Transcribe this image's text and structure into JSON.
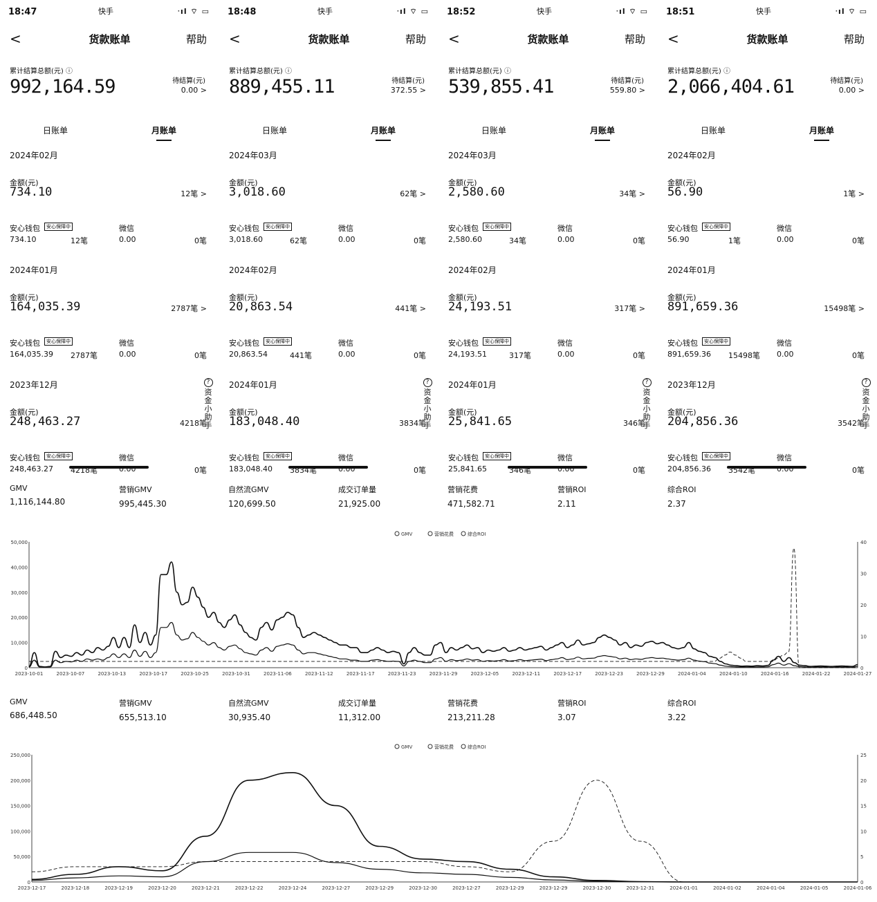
{
  "phones": [
    {
      "time": "18:47",
      "carrier": "快手",
      "status_icons": "ᐧıl ⌔ ▭",
      "title": "货款账单",
      "back": "<",
      "help": "帮助",
      "total_label": "累计结算总额(元) ⓘ",
      "total_value": "992,164.59",
      "pending_label": "待结算(元)",
      "pending_value": "0.00 >",
      "tab_day": "日账单",
      "tab_month": "月账单",
      "sections": [
        {
          "month": "2024年02月",
          "amount_label": "金额(元)",
          "amount": "734.10",
          "count": "12笔 >",
          "wallet_label": "安心钱包",
          "badge": "安心保障中",
          "wechat_label": "微信",
          "wallet_amount": "734.10",
          "wallet_count": "12笔",
          "wechat_amount": "0.00",
          "wechat_count": "0笔"
        },
        {
          "month": "2024年01月",
          "amount_label": "金额(元)",
          "amount": "164,035.39",
          "count": "2787笔 >",
          "wallet_label": "安心钱包",
          "badge": "安心保障中",
          "wechat_label": "微信",
          "wallet_amount": "164,035.39",
          "wallet_count": "2787笔",
          "wechat_amount": "0.00",
          "wechat_count": "0笔"
        },
        {
          "month": "2023年12月",
          "amount_label": "金额(元)",
          "amount": "248,463.27",
          "count": "4218笔",
          "wallet_label": "安心钱包",
          "badge": "安心保障中",
          "wechat_label": "微信",
          "wallet_amount": "248,463.27",
          "wallet_count": "4218笔",
          "wechat_amount": "0.00",
          "wechat_count": "0笔"
        }
      ],
      "helper": "资金小助手"
    },
    {
      "time": "18:48",
      "carrier": "快手",
      "status_icons": "ᐧıl ⌔ ▭",
      "title": "货款账单",
      "back": "<",
      "help": "帮助",
      "total_label": "累计结算总额(元) ⓘ",
      "total_value": "889,455.11",
      "pending_label": "待结算(元)",
      "pending_value": "372.55 >",
      "tab_day": "日账单",
      "tab_month": "月账单",
      "sections": [
        {
          "month": "2024年03月",
          "amount_label": "金额(元)",
          "amount": "3,018.60",
          "count": "62笔 >",
          "wallet_label": "安心钱包",
          "badge": "安心保障中",
          "wechat_label": "微信",
          "wallet_amount": "3,018.60",
          "wallet_count": "62笔",
          "wechat_amount": "0.00",
          "wechat_count": "0笔"
        },
        {
          "month": "2024年02月",
          "amount_label": "金额(元)",
          "amount": "20,863.54",
          "count": "441笔 >",
          "wallet_label": "安心钱包",
          "badge": "安心保障中",
          "wechat_label": "微信",
          "wallet_amount": "20,863.54",
          "wallet_count": "441笔",
          "wechat_amount": "0.00",
          "wechat_count": "0笔"
        },
        {
          "month": "2024年01月",
          "amount_label": "金额(元)",
          "amount": "183,048.40",
          "count": "3834笔",
          "wallet_label": "安心钱包",
          "badge": "安心保障中",
          "wechat_label": "微信",
          "wallet_amount": "183,048.40",
          "wallet_count": "3834笔",
          "wechat_amount": "0.00",
          "wechat_count": "0笔"
        }
      ],
      "helper": "资金小助手"
    },
    {
      "time": "18:52",
      "carrier": "快手",
      "status_icons": "ᐧıl ⌔ ▭",
      "title": "货款账单",
      "back": "<",
      "help": "帮助",
      "total_label": "累计结算总额(元) ⓘ",
      "total_value": "539,855.41",
      "pending_label": "待结算(元)",
      "pending_value": "559.80 >",
      "tab_day": "日账单",
      "tab_month": "月账单",
      "sections": [
        {
          "month": "2024年03月",
          "amount_label": "金额(元)",
          "amount": "2,580.60",
          "count": "34笔 >",
          "wallet_label": "安心钱包",
          "badge": "安心保障中",
          "wechat_label": "微信",
          "wallet_amount": "2,580.60",
          "wallet_count": "34笔",
          "wechat_amount": "0.00",
          "wechat_count": "0笔"
        },
        {
          "month": "2024年02月",
          "amount_label": "金额(元)",
          "amount": "24,193.51",
          "count": "317笔 >",
          "wallet_label": "安心钱包",
          "badge": "安心保障中",
          "wechat_label": "微信",
          "wallet_amount": "24,193.51",
          "wallet_count": "317笔",
          "wechat_amount": "0.00",
          "wechat_count": "0笔"
        },
        {
          "month": "2024年01月",
          "amount_label": "金额(元)",
          "amount": "25,841.65",
          "count": "346笔",
          "wallet_label": "安心钱包",
          "badge": "安心保障中",
          "wechat_label": "微信",
          "wallet_amount": "25,841.65",
          "wallet_count": "346笔",
          "wechat_amount": "0.00",
          "wechat_count": "0笔"
        }
      ],
      "helper": "资金小助手"
    },
    {
      "time": "18:51",
      "carrier": "快手",
      "status_icons": "ᐧıl ⌔ ▭",
      "title": "货款账单",
      "back": "<",
      "help": "帮助",
      "total_label": "累计结算总额(元) ⓘ",
      "total_value": "2,066,404.61",
      "pending_label": "待结算(元)",
      "pending_value": "0.00 >",
      "tab_day": "日账单",
      "tab_month": "月账单",
      "sections": [
        {
          "month": "2024年02月",
          "amount_label": "金额(元)",
          "amount": "56.90",
          "count": "1笔 >",
          "wallet_label": "安心钱包",
          "badge": "安心保障中",
          "wechat_label": "微信",
          "wallet_amount": "56.90",
          "wallet_count": "1笔",
          "wechat_amount": "0.00",
          "wechat_count": "0笔"
        },
        {
          "month": "2024年01月",
          "amount_label": "金额(元)",
          "amount": "891,659.36",
          "count": "15498笔 >",
          "wallet_label": "安心钱包",
          "badge": "安心保障中",
          "wechat_label": "微信",
          "wallet_amount": "891,659.36",
          "wallet_count": "15498笔",
          "wechat_amount": "0.00",
          "wechat_count": "0笔"
        },
        {
          "month": "2023年12月",
          "amount_label": "金额(元)",
          "amount": "204,856.36",
          "count": "3542笔",
          "wallet_label": "安心钱包",
          "badge": "安心保障中",
          "wechat_label": "微信",
          "wallet_amount": "204,856.36",
          "wallet_count": "3542笔",
          "wechat_amount": "0.00",
          "wechat_count": "0笔"
        }
      ],
      "helper": "资金小助手"
    }
  ],
  "stats_1": [
    {
      "label": "GMV",
      "value": "1,116,144.80"
    },
    {
      "label": "营销GMV",
      "value": "995,445.30"
    },
    {
      "label": "自然流GMV",
      "value": "120,699.50"
    },
    {
      "label": "成交订单量",
      "value": "21,925.00"
    },
    {
      "label": "营销花费",
      "value": "471,582.71"
    },
    {
      "label": "营销ROI",
      "value": "2.11"
    },
    {
      "label": "综合ROI",
      "value": "2.37"
    }
  ],
  "stats_2": [
    {
      "label": "GMV",
      "value": "686,448.50"
    },
    {
      "label": "营销GMV",
      "value": "655,513.10"
    },
    {
      "label": "自然流GMV",
      "value": "30,935.40"
    },
    {
      "label": "成交订单量",
      "value": "11,312.00"
    },
    {
      "label": "营销花费",
      "value": "213,211.28"
    },
    {
      "label": "营销ROI",
      "value": "3.07"
    },
    {
      "label": "综合ROI",
      "value": "3.22"
    }
  ],
  "chart_data": [
    {
      "type": "line",
      "legend": [
        "GMV",
        "营销花费",
        "综合ROI"
      ],
      "legend_position": "top-center",
      "y_left_ticks": [
        "50,000",
        "40,000",
        "30,000",
        "20,000",
        "10,000",
        "0"
      ],
      "y_right_ticks": [
        "40",
        "30",
        "20",
        "10",
        "0"
      ],
      "x_ticks": [
        "2023-10-01",
        "2023-10-07",
        "2023-10-13",
        "2023-10-17",
        "2023-10-25",
        "2023-10-31",
        "2023-11-06",
        "2023-11-12",
        "2023-11-17",
        "2023-11-23",
        "2023-11-29",
        "2023-12-05",
        "2023-12-11",
        "2023-12-17",
        "2023-12-23",
        "2023-12-29",
        "2024-01-04",
        "2024-01-10",
        "2024-01-16",
        "2024-01-22",
        "2024-01-27"
      ],
      "ylim_left": [
        0,
        50000
      ],
      "ylim_right": [
        0,
        40
      ],
      "series": [
        {
          "name": "GMV",
          "axis": "left",
          "values": [
            500,
            6000,
            500,
            300,
            500,
            6500,
            4000,
            5000,
            4500,
            6000,
            5000,
            7000,
            6000,
            8000,
            7000,
            8500,
            12000,
            8000,
            12000,
            8000,
            17000,
            10000,
            14000,
            9000,
            13000,
            37000,
            37000,
            42000,
            30000,
            25000,
            26000,
            32000,
            28000,
            24000,
            20000,
            22000,
            18000,
            16000,
            19000,
            21000,
            17000,
            14000,
            12000,
            11000,
            16000,
            18000,
            15000,
            19000,
            20000,
            22000,
            21000,
            16000,
            12000,
            13000,
            14000,
            13000,
            12000,
            11000,
            10000,
            9000,
            9000,
            8000,
            8000,
            6000,
            6000,
            7000,
            8000,
            7000,
            6000,
            6500,
            6000,
            1500,
            6000,
            8000,
            6000,
            5000,
            5000,
            9000,
            10000,
            6000,
            8000,
            7000,
            8000,
            9000,
            7500,
            8000,
            6000,
            7000,
            6500,
            7000,
            8000,
            6500,
            7000,
            8000,
            7000,
            7500,
            8000,
            8500,
            7000,
            8000,
            9000,
            10000,
            8000,
            9000,
            11000,
            9000,
            9500,
            10000,
            12000,
            13000,
            12000,
            11000,
            9000,
            10000,
            8000,
            9000,
            8500,
            10000,
            10500,
            9500,
            10000,
            9000,
            8000,
            7500,
            8000,
            10000,
            7500,
            6500,
            6000,
            4500,
            4000,
            2500,
            1500,
            1000,
            800,
            600,
            700,
            600,
            800,
            700,
            900,
            3000,
            4500,
            2500,
            4000,
            2000,
            1000,
            800,
            500,
            600,
            700,
            600,
            500,
            600,
            700,
            600,
            500,
            1200
          ]
        },
        {
          "name": "营销花费",
          "axis": "left",
          "values": [
            300,
            3000,
            300,
            200,
            300,
            3000,
            2000,
            2500,
            2300,
            3000,
            2500,
            3500,
            3000,
            3500,
            3000,
            4000,
            5500,
            4000,
            5500,
            4000,
            7000,
            4500,
            6500,
            4000,
            6000,
            16000,
            16000,
            18000,
            13000,
            11000,
            11500,
            14000,
            12000,
            10500,
            9000,
            10000,
            8000,
            7000,
            8500,
            9000,
            7500,
            6000,
            5500,
            5000,
            7000,
            8000,
            6500,
            8500,
            9000,
            9500,
            9000,
            7000,
            5500,
            6000,
            6000,
            5500,
            5000,
            4500,
            4000,
            3500,
            3500,
            3000,
            3000,
            2500,
            2500,
            3000,
            3200,
            2800,
            2500,
            2600,
            2500,
            700,
            2500,
            3000,
            2500,
            2000,
            2000,
            3500,
            4000,
            2500,
            3200,
            2800,
            3000,
            3500,
            3000,
            3200,
            2500,
            2800,
            2600,
            2800,
            3200,
            2600,
            2800,
            3200,
            2800,
            3000,
            3200,
            3400,
            2800,
            3200,
            3500,
            4000,
            3200,
            3500,
            4200,
            3500,
            3700,
            3800,
            4500,
            4800,
            4500,
            4200,
            3500,
            3800,
            3200,
            3500,
            3300,
            3800,
            4000,
            3700,
            3800,
            3500,
            3200,
            3000,
            3200,
            3800,
            3000,
            2600,
            2400,
            1800,
            1600,
            1000,
            600,
            400,
            300,
            250,
            300,
            250,
            300,
            300,
            350,
            1200,
            1800,
            1000,
            1600,
            800,
            400,
            300,
            200,
            250,
            300,
            250,
            200,
            250,
            300,
            250,
            200,
            500
          ]
        },
        {
          "name": "综合ROI",
          "axis": "right",
          "dashed": true,
          "values": [
            2,
            2,
            2,
            2,
            2,
            2,
            2,
            2,
            2,
            2,
            2,
            2,
            2,
            2,
            2,
            2,
            2,
            2,
            2,
            2,
            2,
            2,
            2,
            2,
            2,
            2,
            2,
            2,
            2,
            2,
            2,
            2,
            2,
            2,
            2,
            2,
            2,
            2,
            2,
            2,
            2,
            2,
            2,
            2,
            2,
            2,
            2,
            2,
            2,
            2,
            2,
            2,
            2,
            2,
            2,
            2,
            2,
            2,
            2,
            2,
            2,
            2,
            2,
            2,
            2,
            2,
            2,
            2,
            2,
            2,
            2,
            2,
            2,
            2,
            2,
            2,
            2,
            2,
            2,
            2,
            2,
            2,
            2,
            2,
            2,
            2,
            2,
            2,
            2,
            2,
            2,
            2,
            2,
            2,
            2,
            2,
            2,
            2,
            2,
            2,
            2,
            2,
            2,
            2,
            2,
            2,
            2,
            2,
            2,
            2,
            2,
            2,
            2,
            2,
            2,
            2,
            2,
            2,
            2,
            2,
            2,
            2,
            2,
            2,
            2,
            2,
            2,
            2,
            2,
            2,
            3,
            4,
            5,
            4,
            3,
            2,
            2,
            2,
            2,
            2,
            2,
            3,
            4,
            5,
            38,
            0,
            0,
            0,
            0,
            0,
            0,
            0,
            0,
            0,
            0,
            0,
            0
          ]
        }
      ]
    },
    {
      "type": "line",
      "legend": [
        "GMV",
        "营销花费",
        "综合ROI"
      ],
      "legend_position": "top-center",
      "y_left_ticks": [
        "250,000",
        "200,000",
        "150,000",
        "100,000",
        "50,000",
        "0"
      ],
      "y_right_ticks": [
        "25",
        "20",
        "15",
        "10",
        "5",
        "0"
      ],
      "x_ticks": [
        "2023-12-17",
        "2023-12-18",
        "2023-12-19",
        "2023-12-20",
        "2023-12-21",
        "2023-12-22",
        "2023-12-24",
        "2023-12-27",
        "2023-12-29",
        "2023-12-30",
        "2023-12-27",
        "2023-12-29",
        "2023-12-29",
        "2023-12-30",
        "2023-12-31",
        "2024-01-01",
        "2024-01-02",
        "2024-01-04",
        "2024-01-05",
        "2024-01-06"
      ],
      "ylim_left": [
        0,
        250000
      ],
      "ylim_right": [
        0,
        25
      ],
      "series": [
        {
          "name": "GMV",
          "axis": "left",
          "values": [
            5000,
            15000,
            30000,
            22000,
            90000,
            200000,
            215000,
            150000,
            70000,
            45000,
            40000,
            25000,
            10000,
            3000,
            500,
            0,
            0,
            0,
            0,
            0
          ]
        },
        {
          "name": "营销花费",
          "axis": "left",
          "values": [
            3000,
            8000,
            12000,
            10000,
            40000,
            58000,
            58000,
            38000,
            25000,
            18000,
            15000,
            9000,
            4000,
            1200,
            300,
            0,
            0,
            0,
            0,
            0
          ]
        },
        {
          "name": "综合ROI",
          "axis": "right",
          "dashed": true,
          "values": [
            2,
            3,
            3,
            3,
            4,
            4,
            4,
            4,
            4,
            4,
            3,
            2,
            8,
            20,
            8,
            0,
            0,
            0,
            0,
            0
          ]
        }
      ]
    }
  ]
}
